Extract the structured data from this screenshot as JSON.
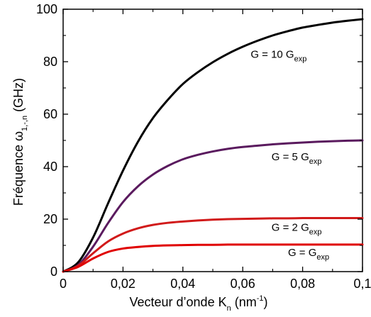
{
  "chart_data": {
    "type": "line",
    "xlabel": {
      "main": "Vecteur d’onde K",
      "sub": "n",
      "unit_pre": " (nm",
      "unit_sup": "-1",
      "unit_post": ")"
    },
    "ylabel": {
      "main": "Fréquence ω",
      "sub": "1,-,n",
      "unit": "  (GHz)"
    },
    "xlim": [
      0,
      0.1
    ],
    "ylim": [
      0,
      100
    ],
    "xticks": [
      {
        "v": 0,
        "label": "0"
      },
      {
        "v": 0.02,
        "label": "0,02"
      },
      {
        "v": 0.04,
        "label": "0,04"
      },
      {
        "v": 0.06,
        "label": "0,06"
      },
      {
        "v": 0.08,
        "label": "0,08"
      },
      {
        "v": 0.1,
        "label": "0,1"
      }
    ],
    "yticks": [
      {
        "v": 0,
        "label": "0"
      },
      {
        "v": 20,
        "label": "20"
      },
      {
        "v": 40,
        "label": "40"
      },
      {
        "v": 60,
        "label": "60"
      },
      {
        "v": 80,
        "label": "80"
      },
      {
        "v": 100,
        "label": "100"
      }
    ],
    "x": [
      0,
      0.005,
      0.01,
      0.015,
      0.02,
      0.025,
      0.03,
      0.035,
      0.04,
      0.045,
      0.05,
      0.055,
      0.06,
      0.065,
      0.07,
      0.075,
      0.08,
      0.085,
      0.09,
      0.095,
      0.1
    ],
    "series": [
      {
        "name": "G = 10 G",
        "sub": "exp",
        "color": "#000000",
        "values": [
          0,
          3.5,
          13,
          26,
          38.5,
          49.5,
          58.5,
          65.5,
          71.5,
          76,
          79.8,
          83,
          85.7,
          88,
          90,
          91.6,
          93,
          94,
          94.9,
          95.6,
          96.2
        ]
      },
      {
        "name": "G = 5 G",
        "sub": "exp",
        "color": "#5a1a5e",
        "values": [
          0,
          2.5,
          9.5,
          18.5,
          26.5,
          32.5,
          37,
          40.3,
          42.8,
          44.5,
          45.8,
          46.8,
          47.5,
          48,
          48.5,
          48.9,
          49.2,
          49.5,
          49.7,
          49.9,
          50
        ]
      },
      {
        "name": "G = 2 G",
        "sub": "exp",
        "color": "#d11a1a",
        "values": [
          0,
          2.2,
          7,
          11.5,
          14.5,
          16.5,
          17.8,
          18.6,
          19.1,
          19.5,
          19.8,
          20,
          20.1,
          20.2,
          20.3,
          20.3,
          20.4,
          20.4,
          20.4,
          20.4,
          20.4
        ]
      },
      {
        "name": "G = G",
        "sub": "exp",
        "color": "#e00000",
        "values": [
          0,
          1.8,
          5,
          7.5,
          8.8,
          9.4,
          9.8,
          10,
          10.1,
          10.2,
          10.2,
          10.3,
          10.3,
          10.3,
          10.3,
          10.3,
          10.3,
          10.3,
          10.3,
          10.3,
          10.3
        ]
      }
    ],
    "annotations": [
      {
        "text": "G = 10 G",
        "sub": "exp",
        "x": 0.072,
        "y": 81.5
      },
      {
        "text": "G = 5 G",
        "sub": "exp",
        "x": 0.078,
        "y": 42.5
      },
      {
        "text": "G = 2 G",
        "sub": "exp",
        "x": 0.078,
        "y": 15.5
      },
      {
        "text": "G = G",
        "sub": "exp",
        "x": 0.082,
        "y": 6
      }
    ],
    "grid": false,
    "legend": "none"
  }
}
